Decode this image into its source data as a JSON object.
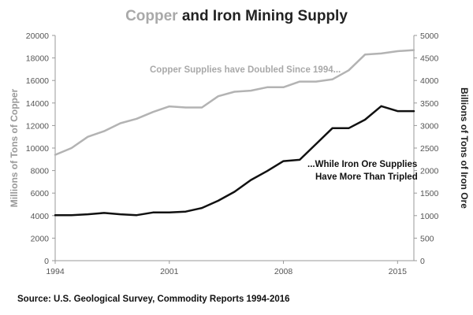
{
  "title": {
    "part1": "Copper",
    "part2": " and Iron Mining Supply"
  },
  "source": "Source: U.S. Geological Survey, Commodity Reports 1994-2016",
  "colors": {
    "copper": "#b3b3b3",
    "iron": "#111111",
    "axis": "#999999"
  },
  "chart_data": {
    "type": "line",
    "title": "Copper and Iron Mining Supply",
    "x": [
      1994,
      1995,
      1996,
      1997,
      1998,
      1999,
      2000,
      2001,
      2002,
      2003,
      2004,
      2005,
      2006,
      2007,
      2008,
      2009,
      2010,
      2011,
      2012,
      2013,
      2014,
      2015,
      2016
    ],
    "xticks": [
      "1994",
      "2001",
      "2008",
      "2015"
    ],
    "xlim": [
      1994,
      2016
    ],
    "left_axis": {
      "label": "Millions of Tons of Copper",
      "ylim": [
        0,
        20000
      ],
      "ticks": [
        "0",
        "2000",
        "4000",
        "6000",
        "8000",
        "10000",
        "12000",
        "14000",
        "16000",
        "18000",
        "20000"
      ]
    },
    "right_axis": {
      "label": "Billions of Tons of Iron Ore",
      "ylim": [
        0,
        5000
      ],
      "ticks": [
        "0",
        "500",
        "1000",
        "1500",
        "2000",
        "2500",
        "3000",
        "3500",
        "4000",
        "4500",
        "5000"
      ]
    },
    "series": [
      {
        "name": "Copper",
        "axis": "left",
        "values": [
          9400,
          10000,
          11000,
          11500,
          12200,
          12600,
          13200,
          13700,
          13600,
          13600,
          14600,
          15000,
          15100,
          15400,
          15400,
          15900,
          15900,
          16100,
          16900,
          18300,
          18400,
          18600,
          18700
        ]
      },
      {
        "name": "Iron Ore",
        "axis": "right",
        "values": [
          1010,
          1010,
          1030,
          1060,
          1030,
          1010,
          1070,
          1070,
          1090,
          1170,
          1330,
          1530,
          1790,
          1990,
          2210,
          2240,
          2590,
          2940,
          2940,
          3130,
          3430,
          3320,
          3320
        ]
      }
    ],
    "annotations": {
      "copper": "Copper Supplies have Doubled Since 1994...",
      "iron_line1": "...While Iron Ore Supplies",
      "iron_line2": "Have More Than Tripled"
    }
  }
}
